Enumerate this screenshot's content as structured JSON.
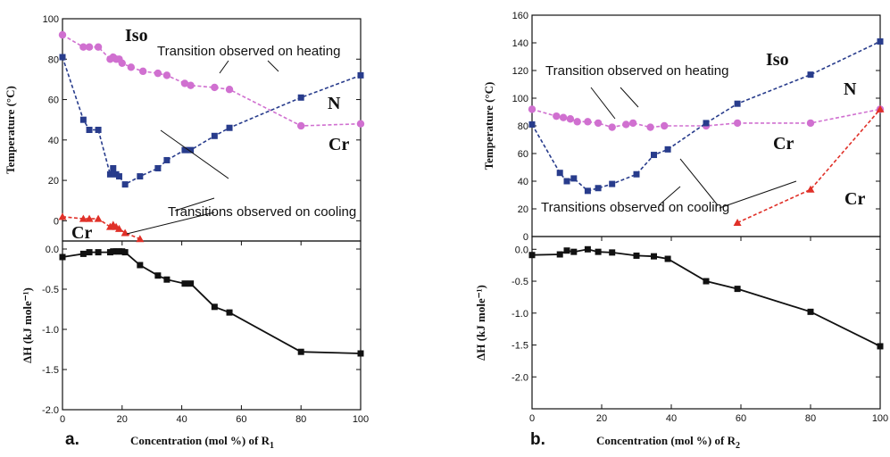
{
  "chart_data": [
    {
      "id": "a_top",
      "type": "line",
      "ylabel": "Temperature (°C)",
      "xlim": [
        0,
        100
      ],
      "ylim": [
        -10,
        100
      ],
      "yticks": [
        0,
        20,
        40,
        60,
        80,
        100
      ],
      "xticks": [],
      "series": [
        {
          "key": "iso",
          "color": "#d070d0",
          "marker": "circle",
          "dashed": true,
          "x": [
            0,
            7,
            9,
            12,
            16,
            17,
            18,
            19,
            20,
            23,
            27,
            32,
            35,
            41,
            43,
            51,
            56,
            80,
            100
          ],
          "y": [
            92,
            86,
            86,
            86,
            80,
            81,
            80,
            80,
            78,
            76,
            74,
            73,
            72,
            68,
            67,
            66,
            65,
            47,
            48
          ]
        },
        {
          "key": "n",
          "color": "#283c8c",
          "marker": "square",
          "dashed": true,
          "x": [
            0,
            7,
            9,
            12,
            16,
            17,
            18,
            19,
            21,
            26,
            32,
            35,
            41,
            43,
            51,
            56,
            80,
            100
          ],
          "y": [
            81,
            50,
            45,
            45,
            23,
            26,
            23,
            22,
            18,
            22,
            26,
            30,
            35,
            35,
            42,
            46,
            61,
            72
          ]
        },
        {
          "key": "cr",
          "color": "#e03028",
          "marker": "triangle",
          "dashed": true,
          "x": [
            0,
            7,
            9,
            12,
            16,
            17,
            18,
            19,
            21,
            26
          ],
          "y": [
            2,
            1,
            1,
            1,
            -3,
            -2,
            -3,
            -4,
            -6,
            -9
          ]
        }
      ],
      "labels": [
        {
          "key": "iso",
          "text": "Iso"
        },
        {
          "key": "n",
          "text": "N"
        },
        {
          "key": "cr1",
          "text": "Cr"
        },
        {
          "key": "cr2",
          "text": "Cr"
        },
        {
          "key": "heat",
          "text": "Transition observed on heating"
        },
        {
          "key": "cool",
          "text": "Transitions observed on cooling"
        }
      ]
    },
    {
      "id": "a_bottom",
      "type": "line",
      "ylabel": "ΔH (kJ mole⁻¹)",
      "xlabel": "Concentration (mol %)  of R",
      "xlabel_sub": "1",
      "xlim": [
        0,
        100
      ],
      "ylim": [
        -2.0,
        0.1
      ],
      "yticks": [
        0.0,
        -0.5,
        -1.0,
        -1.5,
        -2.0
      ],
      "ytick_labels": [
        "0.0",
        "-0.5",
        "-1.0",
        "-1.5",
        "-2.0"
      ],
      "xticks": [
        0,
        20,
        40,
        60,
        80,
        100
      ],
      "series": [
        {
          "key": "dh",
          "color": "#111111",
          "marker": "square",
          "dashed": false,
          "x": [
            0,
            7,
            9,
            12,
            16,
            17,
            18,
            19,
            20,
            21,
            26,
            32,
            35,
            41,
            43,
            51,
            56,
            80,
            100
          ],
          "y": [
            -0.1,
            -0.06,
            -0.04,
            -0.04,
            -0.04,
            -0.03,
            -0.03,
            -0.03,
            -0.03,
            -0.04,
            -0.2,
            -0.33,
            -0.38,
            -0.43,
            -0.43,
            -0.72,
            -0.79,
            -1.28,
            -1.3
          ]
        }
      ]
    },
    {
      "id": "b_top",
      "type": "line",
      "ylabel": "Temperature (°C)",
      "xlim": [
        0,
        100
      ],
      "ylim": [
        0,
        160
      ],
      "yticks": [
        0,
        20,
        40,
        60,
        80,
        100,
        120,
        140,
        160
      ],
      "xticks": [],
      "series": [
        {
          "key": "iso",
          "color": "#d070d0",
          "marker": "circle",
          "dashed": true,
          "x": [
            0,
            7,
            9,
            11,
            13,
            16,
            19,
            23,
            27,
            29,
            34,
            38,
            50,
            59,
            80,
            100
          ],
          "y": [
            92,
            87,
            86,
            85,
            83,
            83,
            82,
            79,
            81,
            82,
            79,
            80,
            80,
            82,
            82,
            92
          ]
        },
        {
          "key": "n",
          "color": "#283c8c",
          "marker": "square",
          "dashed": true,
          "x": [
            0,
            8,
            10,
            12,
            16,
            19,
            23,
            30,
            35,
            39,
            50,
            59,
            80,
            100
          ],
          "y": [
            81,
            46,
            40,
            42,
            33,
            35,
            38,
            45,
            59,
            63,
            82,
            96,
            117,
            141
          ]
        },
        {
          "key": "cr",
          "color": "#e03028",
          "marker": "triangle",
          "dashed": true,
          "x": [
            59,
            80,
            100
          ],
          "y": [
            10,
            34,
            92
          ]
        }
      ],
      "labels": [
        {
          "key": "iso",
          "text": "Iso"
        },
        {
          "key": "n",
          "text": "N"
        },
        {
          "key": "cr1",
          "text": "Cr"
        },
        {
          "key": "cr2",
          "text": "Cr"
        },
        {
          "key": "heat",
          "text": "Transition observed on heating"
        },
        {
          "key": "cool",
          "text": "Transitions observed on cooling"
        }
      ]
    },
    {
      "id": "b_bottom",
      "type": "line",
      "ylabel": "ΔH (kJ mole⁻¹)",
      "xlabel": "Concentration (mol %) of R",
      "xlabel_sub": "2",
      "xlim": [
        0,
        100
      ],
      "ylim": [
        -2.5,
        0.2
      ],
      "yticks": [
        0.0,
        -0.5,
        -1.0,
        -1.5,
        -2.0
      ],
      "ytick_labels": [
        "0.0",
        "-0.5",
        "-1.0",
        "-1.5",
        "-2.0"
      ],
      "xticks": [
        0,
        20,
        40,
        60,
        80,
        100
      ],
      "series": [
        {
          "key": "dh",
          "color": "#111111",
          "marker": "square",
          "dashed": false,
          "x": [
            0,
            8,
            10,
            12,
            16,
            19,
            23,
            30,
            35,
            39,
            50,
            59,
            80,
            100
          ],
          "y": [
            -0.09,
            -0.08,
            -0.02,
            -0.04,
            0.0,
            -0.04,
            -0.05,
            -0.1,
            -0.11,
            -0.15,
            -0.5,
            -0.62,
            -0.98,
            -1.52
          ]
        }
      ]
    }
  ],
  "panel_labels": {
    "a": "a.",
    "b": "b."
  }
}
